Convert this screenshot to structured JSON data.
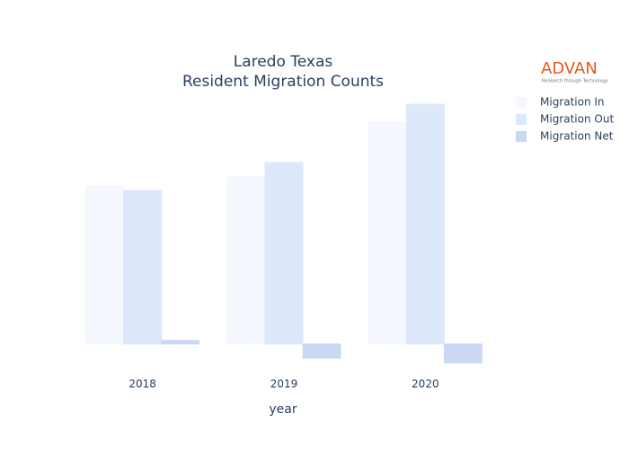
{
  "chart_data": {
    "type": "bar",
    "title": "Laredo Texas",
    "subtitle": "Resident Migration Counts",
    "x_label": "year",
    "logo": {
      "name": "ADVAN",
      "tagline": "Research through Technology"
    },
    "categories": [
      "2018",
      "2019",
      "2020"
    ],
    "series": [
      {
        "name": "Migration In",
        "color": "#f4f7fd",
        "values": [
          176,
          186,
          247
        ]
      },
      {
        "name": "Migration Out",
        "color": "#dde8fb",
        "values": [
          171,
          202,
          267
        ]
      },
      {
        "name": "Migration Net",
        "color": "#c9d8f3",
        "values": [
          4,
          -16,
          -21
        ]
      }
    ],
    "ylim": [
      -30,
      280
    ]
  }
}
